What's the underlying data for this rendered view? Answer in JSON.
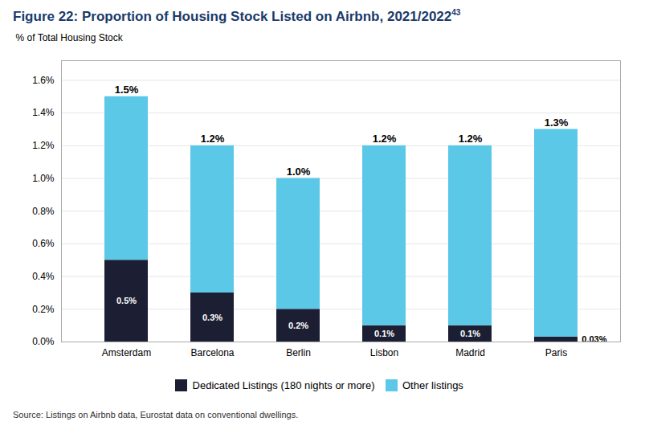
{
  "chart_data": {
    "type": "bar",
    "stacked": true,
    "title": "Figure 22: Proportion of Housing Stock Listed on Airbnb, 2021/2022",
    "title_superscript": "43",
    "title_color": "#1a3a6b",
    "ylabel": "% of Total Housing Stock",
    "source": "Source: Listings on Airbnb data, Eurostat data on conventional dwellings.",
    "categories": [
      "Amsterdam",
      "Barcelona",
      "Berlin",
      "Lisbon",
      "Madrid",
      "Paris"
    ],
    "series": [
      {
        "name": "Dedicated Listings (180 nights or more)",
        "color": "#1c1f33",
        "values": [
          0.5,
          0.3,
          0.2,
          0.1,
          0.1,
          0.03
        ],
        "value_labels": [
          "0.5%",
          "0.3%",
          "0.2%",
          "0.1%",
          "0.1%",
          "0.03%"
        ]
      },
      {
        "name": "Other listings",
        "color": "#5bc8e8",
        "values": [
          1.0,
          0.9,
          0.8,
          1.1,
          1.1,
          1.27
        ]
      }
    ],
    "totals": [
      1.5,
      1.2,
      1.0,
      1.2,
      1.2,
      1.3
    ],
    "total_labels": [
      "1.5%",
      "1.2%",
      "1.0%",
      "1.2%",
      "1.2%",
      "1.3%"
    ],
    "data_labels": true,
    "ylim": [
      0,
      1.72
    ],
    "yticks": [
      {
        "value": 0.0,
        "label": "0.0%"
      },
      {
        "value": 0.2,
        "label": "0.2%"
      },
      {
        "value": 0.4,
        "label": "0.4%"
      },
      {
        "value": 0.6,
        "label": "0.6%"
      },
      {
        "value": 0.8,
        "label": "0.8%"
      },
      {
        "value": 1.0,
        "label": "1.0%"
      },
      {
        "value": 1.2,
        "label": "1.2%"
      },
      {
        "value": 1.4,
        "label": "1.4%"
      },
      {
        "value": 1.6,
        "label": "1.6%"
      }
    ],
    "grid": true,
    "legend": "bottom"
  }
}
